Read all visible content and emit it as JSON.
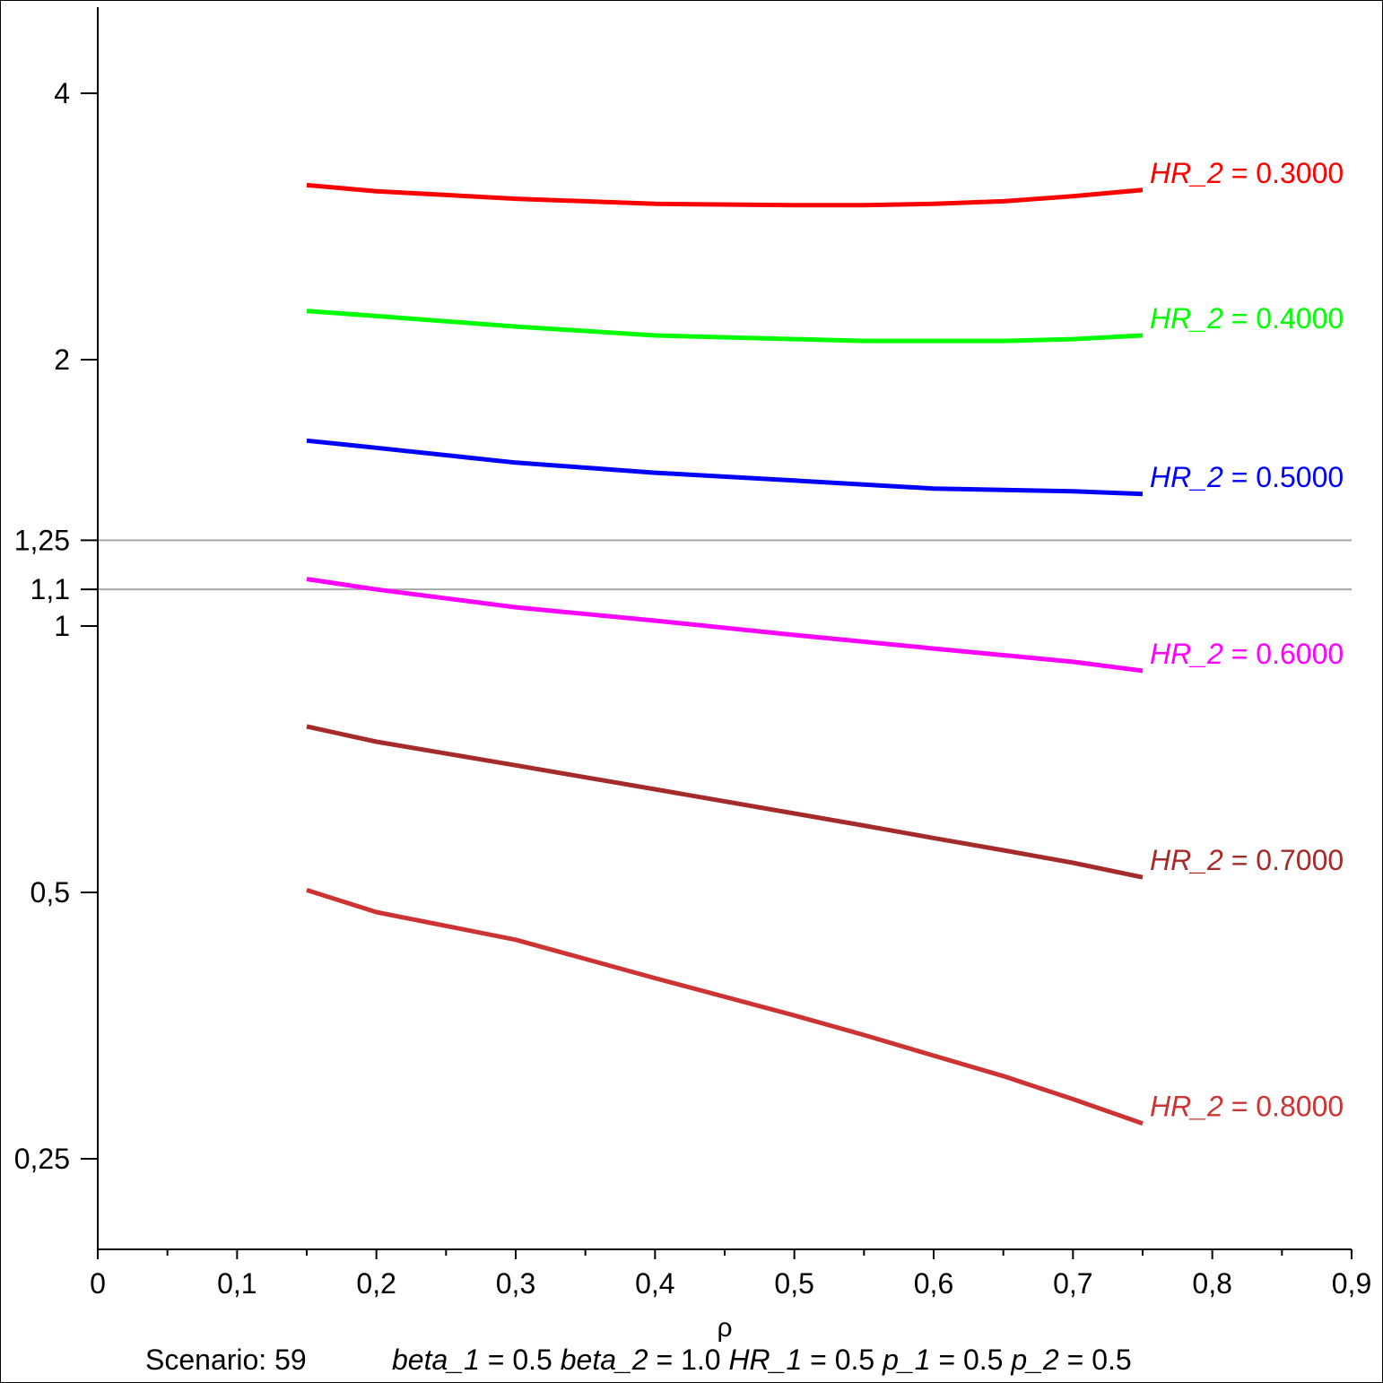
{
  "chart_data": {
    "type": "line",
    "title": "",
    "xlabel": "ρ",
    "ylabel": "",
    "xlim": [
      0,
      0.9
    ],
    "ylim": [
      0.197,
      5.0
    ],
    "yscale": "log",
    "grid": false,
    "x_ticks": [
      0,
      0.1,
      0.2,
      0.3,
      0.4,
      0.5,
      0.6,
      0.7,
      0.8,
      0.9
    ],
    "x_tick_labels": [
      "0",
      "0,1",
      "0,2",
      "0,3",
      "0,4",
      "0,5",
      "0,6",
      "0,7",
      "0,8",
      "0,9"
    ],
    "x_minor_ticks": [
      0.05,
      0.15,
      0.25,
      0.35,
      0.45,
      0.55,
      0.65,
      0.75,
      0.85
    ],
    "y_ticks": [
      4,
      2,
      1.25,
      1.1,
      1,
      0.5,
      0.25
    ],
    "y_tick_labels": [
      "4",
      "2",
      "1,25",
      "1,1",
      "1",
      "0,5",
      "0,25"
    ],
    "reference_lines": {
      "y": [
        1.25,
        1.1
      ],
      "color": "#a6a6a6"
    },
    "x": [
      0.15,
      0.2,
      0.3,
      0.4,
      0.5,
      0.55,
      0.6,
      0.65,
      0.7,
      0.75
    ],
    "series": [
      {
        "name": "HR_2 = 0.3000",
        "label_var": "HR_2",
        "label_value": "0.3000",
        "color": "#ff0000",
        "values": [
          3.15,
          3.1,
          3.04,
          3.0,
          2.99,
          2.99,
          3.0,
          3.02,
          3.06,
          3.11
        ]
      },
      {
        "name": "HR_2 = 0.4000",
        "label_var": "HR_2",
        "label_value": "0.4000",
        "color": "#00ff00",
        "values": [
          2.27,
          2.24,
          2.18,
          2.13,
          2.11,
          2.1,
          2.1,
          2.1,
          2.11,
          2.13
        ]
      },
      {
        "name": "HR_2 = 0.5000",
        "label_var": "HR_2",
        "label_value": "0.5000",
        "color": "#0000ff",
        "values": [
          1.62,
          1.59,
          1.53,
          1.49,
          1.46,
          1.445,
          1.43,
          1.425,
          1.42,
          1.41
        ]
      },
      {
        "name": "HR_2 = 0.6000",
        "label_var": "HR_2",
        "label_value": "0.6000",
        "color": "#ff00ff",
        "values": [
          1.13,
          1.1,
          1.05,
          1.014,
          0.977,
          0.96,
          0.943,
          0.927,
          0.911,
          0.89
        ]
      },
      {
        "name": "HR_2 = 0.7000",
        "label_var": "HR_2",
        "label_value": "0.7000",
        "color": "#a52a2a",
        "values": [
          0.77,
          0.74,
          0.696,
          0.654,
          0.614,
          0.595,
          0.576,
          0.558,
          0.54,
          0.52
        ]
      },
      {
        "name": "HR_2 = 0.8000",
        "label_var": "HR_2",
        "label_value": "0.8000",
        "color": "#cd3333",
        "values": [
          0.503,
          0.475,
          0.442,
          0.4,
          0.363,
          0.345,
          0.327,
          0.31,
          0.292,
          0.274
        ]
      }
    ]
  },
  "footer": {
    "scenario": "Scenario: 59",
    "params": [
      {
        "name": "beta_1",
        "value": "0.5"
      },
      {
        "name": "beta_2",
        "value": "1.0"
      },
      {
        "name": "HR_1",
        "value": "0.5"
      },
      {
        "name": "p_1",
        "value": "0.5"
      },
      {
        "name": "p_2",
        "value": "0.5"
      }
    ]
  }
}
